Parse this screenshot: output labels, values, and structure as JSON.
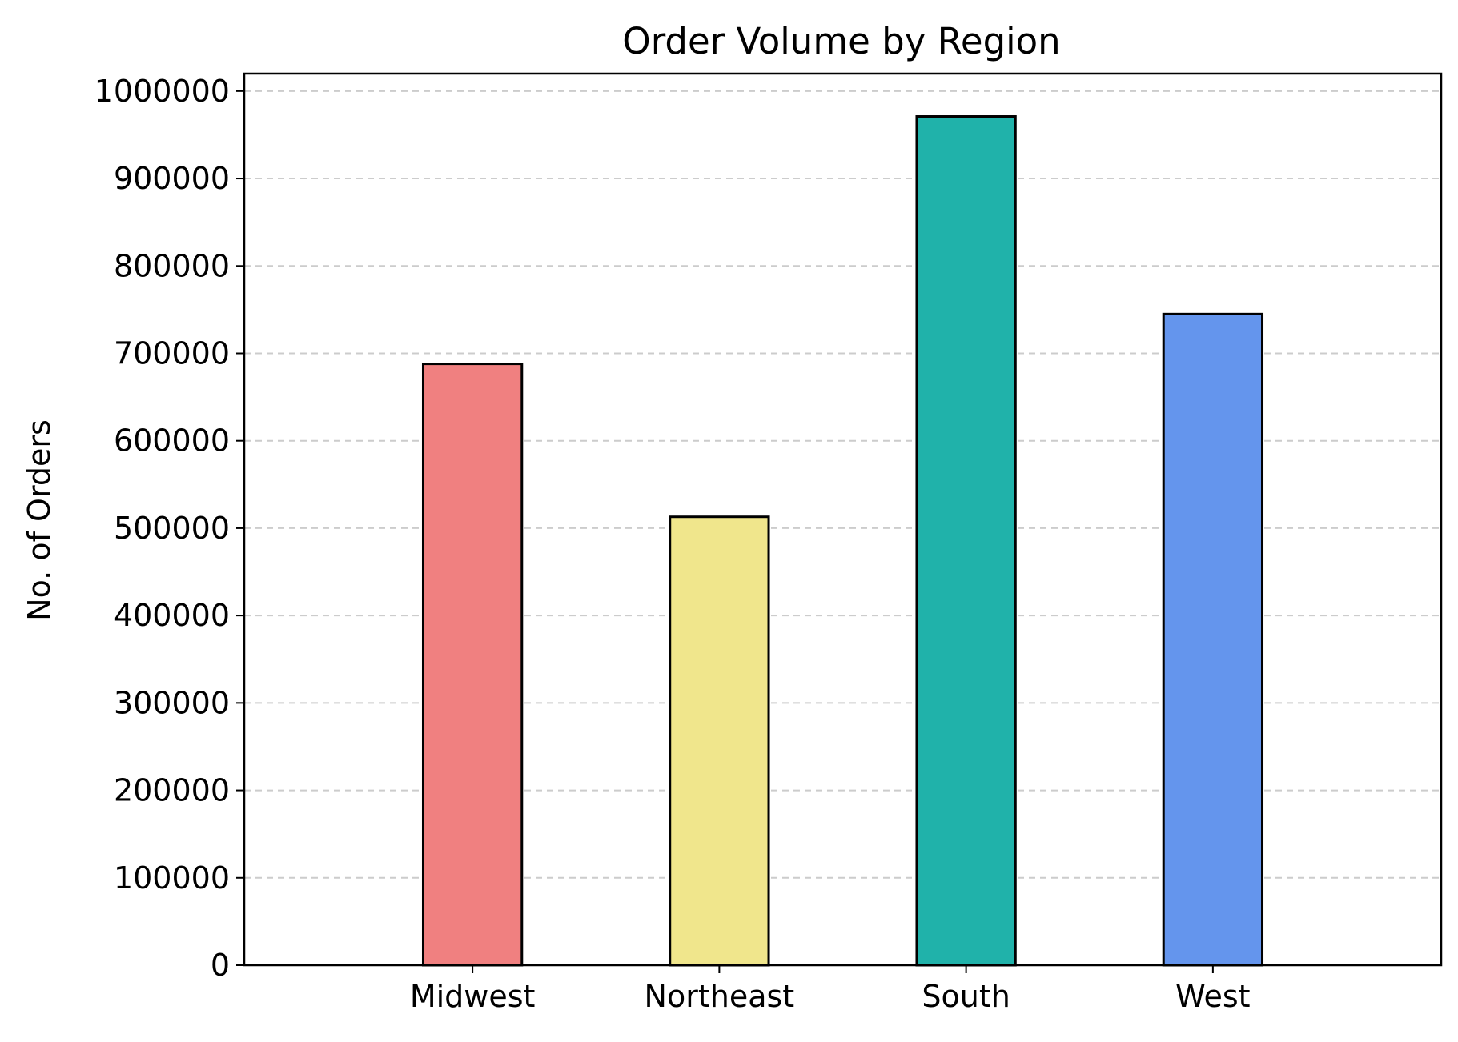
{
  "chart_data": {
    "type": "bar",
    "title": "Order Volume by Region",
    "xlabel": "",
    "ylabel": "No. of Orders",
    "categories": [
      "Midwest",
      "Northeast",
      "South",
      "West"
    ],
    "values": [
      688000,
      513000,
      971000,
      745000
    ],
    "colors": [
      "#f08080",
      "#f0e68c",
      "#20b2aa",
      "#6495ed"
    ],
    "edge_color": "#000000",
    "ylim": [
      0,
      1020000
    ],
    "yticks": [
      0,
      100000,
      200000,
      300000,
      400000,
      500000,
      600000,
      700000,
      800000,
      900000,
      1000000
    ],
    "ytick_labels": [
      "0",
      "100000",
      "200000",
      "300000",
      "400000",
      "500000",
      "600000",
      "700000",
      "800000",
      "900000",
      "1000000"
    ],
    "grid": {
      "axis": "y",
      "style": "dashed",
      "color": "#cccccc"
    },
    "legend": "none"
  }
}
